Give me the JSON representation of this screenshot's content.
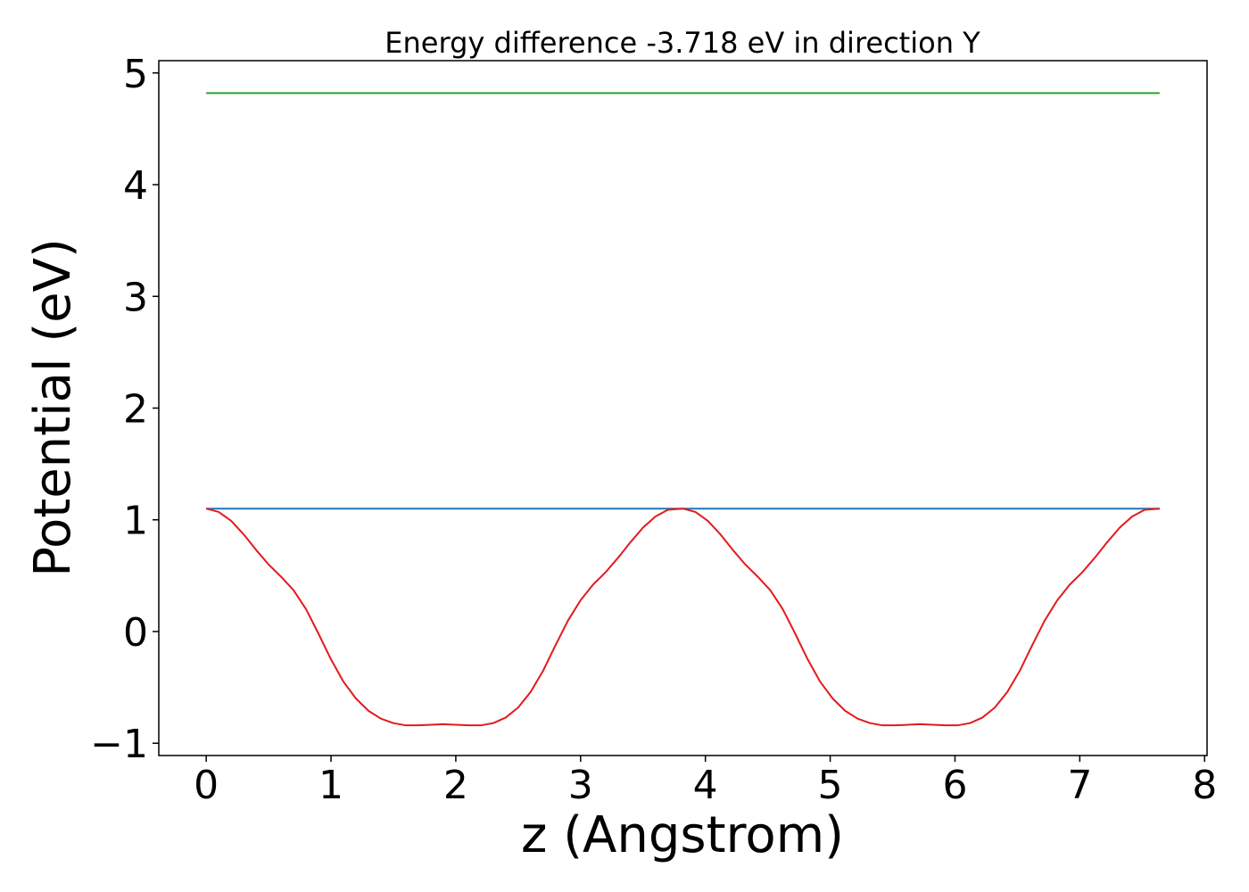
{
  "chart_data": {
    "type": "line",
    "title": "Energy difference -3.718 eV in direction Y",
    "xlabel": "z (Angstrom)",
    "ylabel": "Potential (eV)",
    "xlim": [
      -0.38,
      8.02
    ],
    "ylim": [
      -1.11,
      5.11
    ],
    "x_ticks": [
      0,
      1,
      2,
      3,
      4,
      5,
      6,
      7,
      8
    ],
    "x_tick_labels": [
      "0",
      "1",
      "2",
      "3",
      "4",
      "5",
      "6",
      "7",
      "8"
    ],
    "y_ticks": [
      -1,
      0,
      1,
      2,
      3,
      4,
      5
    ],
    "y_tick_labels": [
      "−1",
      "0",
      "1",
      "2",
      "3",
      "4",
      "5"
    ],
    "grid": false,
    "series": [
      {
        "color": "#2ca02c",
        "x": [
          0,
          7.64
        ],
        "y": [
          4.82,
          4.82
        ]
      },
      {
        "color": "#1f77b4",
        "x": [
          0,
          7.64
        ],
        "y": [
          1.1,
          1.1
        ]
      },
      {
        "color": "#e31a1c",
        "x": [
          0,
          0.1,
          0.2,
          0.3,
          0.4,
          0.5,
          0.6,
          0.7,
          0.8,
          0.9,
          1.0,
          1.1,
          1.2,
          1.3,
          1.4,
          1.5,
          1.6,
          1.7,
          1.8,
          1.9,
          2.0,
          2.1,
          2.2,
          2.3,
          2.4,
          2.5,
          2.6,
          2.7,
          2.8,
          2.9,
          3.0,
          3.1,
          3.2,
          3.3,
          3.4,
          3.5,
          3.6,
          3.7,
          3.82,
          3.92,
          4.02,
          4.12,
          4.22,
          4.32,
          4.42,
          4.52,
          4.62,
          4.72,
          4.82,
          4.92,
          5.02,
          5.12,
          5.22,
          5.32,
          5.42,
          5.52,
          5.62,
          5.72,
          5.82,
          5.92,
          6.02,
          6.12,
          6.22,
          6.32,
          6.42,
          6.52,
          6.62,
          6.72,
          6.82,
          6.92,
          7.02,
          7.12,
          7.22,
          7.32,
          7.42,
          7.52,
          7.64
        ],
        "y": [
          1.1,
          1.07,
          0.99,
          0.87,
          0.73,
          0.6,
          0.49,
          0.37,
          0.2,
          -0.02,
          -0.25,
          -0.45,
          -0.6,
          -0.71,
          -0.78,
          -0.82,
          -0.84,
          -0.84,
          -0.835,
          -0.83,
          -0.835,
          -0.84,
          -0.84,
          -0.82,
          -0.77,
          -0.68,
          -0.54,
          -0.35,
          -0.12,
          0.1,
          0.28,
          0.42,
          0.53,
          0.66,
          0.8,
          0.93,
          1.03,
          1.09,
          1.1,
          1.07,
          0.99,
          0.87,
          0.73,
          0.6,
          0.49,
          0.37,
          0.2,
          -0.02,
          -0.25,
          -0.45,
          -0.6,
          -0.71,
          -0.78,
          -0.82,
          -0.84,
          -0.84,
          -0.835,
          -0.83,
          -0.835,
          -0.84,
          -0.84,
          -0.82,
          -0.77,
          -0.68,
          -0.54,
          -0.35,
          -0.12,
          0.1,
          0.28,
          0.42,
          0.53,
          0.66,
          0.8,
          0.93,
          1.03,
          1.09,
          1.1
        ]
      }
    ]
  }
}
